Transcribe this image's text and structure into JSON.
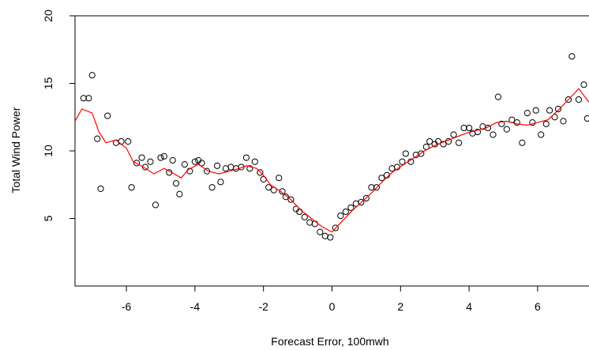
{
  "chart_data": {
    "type": "scatter",
    "title": "",
    "xlabel": "Forecast Error, 100mwh",
    "ylabel": "Total Wind Power",
    "xlim": [
      -7.5,
      7.5
    ],
    "ylim": [
      0,
      20
    ],
    "xticks": [
      -6,
      -4,
      -2,
      0,
      2,
      4,
      6
    ],
    "yticks": [
      5,
      10,
      15,
      20
    ],
    "grid": false,
    "legend": "none",
    "colors": {
      "points": "#000000",
      "smooth_line": "#ff0000"
    },
    "points": [
      [
        -7.25,
        13.9
      ],
      [
        -7.1,
        13.9
      ],
      [
        -7.0,
        15.6
      ],
      [
        -6.85,
        10.9
      ],
      [
        -6.75,
        7.2
      ],
      [
        -6.55,
        12.6
      ],
      [
        -6.3,
        10.6
      ],
      [
        -6.15,
        10.7
      ],
      [
        -5.95,
        10.7
      ],
      [
        -5.85,
        7.3
      ],
      [
        -5.7,
        9.1
      ],
      [
        -5.55,
        9.5
      ],
      [
        -5.45,
        8.8
      ],
      [
        -5.3,
        9.2
      ],
      [
        -5.15,
        6.0
      ],
      [
        -5.0,
        9.5
      ],
      [
        -4.9,
        9.6
      ],
      [
        -4.75,
        8.4
      ],
      [
        -4.65,
        9.3
      ],
      [
        -4.55,
        7.6
      ],
      [
        -4.45,
        6.8
      ],
      [
        -4.3,
        9.0
      ],
      [
        -4.15,
        8.5
      ],
      [
        -4.0,
        9.2
      ],
      [
        -3.9,
        9.3
      ],
      [
        -3.8,
        9.1
      ],
      [
        -3.65,
        8.5
      ],
      [
        -3.5,
        7.3
      ],
      [
        -3.35,
        8.9
      ],
      [
        -3.25,
        7.7
      ],
      [
        -3.1,
        8.7
      ],
      [
        -2.95,
        8.8
      ],
      [
        -2.8,
        8.7
      ],
      [
        -2.65,
        8.8
      ],
      [
        -2.5,
        9.5
      ],
      [
        -2.4,
        8.7
      ],
      [
        -2.25,
        9.2
      ],
      [
        -2.1,
        8.4
      ],
      [
        -2.0,
        7.9
      ],
      [
        -1.85,
        7.3
      ],
      [
        -1.7,
        7.1
      ],
      [
        -1.55,
        8.0
      ],
      [
        -1.45,
        7.0
      ],
      [
        -1.35,
        6.6
      ],
      [
        -1.2,
        6.4
      ],
      [
        -1.05,
        5.7
      ],
      [
        -0.95,
        5.5
      ],
      [
        -0.8,
        5.1
      ],
      [
        -0.65,
        4.7
      ],
      [
        -0.5,
        4.6
      ],
      [
        -0.35,
        4.0
      ],
      [
        -0.2,
        3.7
      ],
      [
        -0.05,
        3.6
      ],
      [
        0.1,
        4.3
      ],
      [
        0.25,
        5.2
      ],
      [
        0.4,
        5.5
      ],
      [
        0.55,
        5.8
      ],
      [
        0.7,
        6.1
      ],
      [
        0.85,
        6.2
      ],
      [
        1.0,
        6.5
      ],
      [
        1.15,
        7.3
      ],
      [
        1.3,
        7.3
      ],
      [
        1.45,
        8.0
      ],
      [
        1.6,
        8.2
      ],
      [
        1.75,
        8.7
      ],
      [
        1.9,
        8.8
      ],
      [
        2.05,
        9.2
      ],
      [
        2.15,
        9.8
      ],
      [
        2.3,
        9.2
      ],
      [
        2.45,
        9.7
      ],
      [
        2.6,
        9.8
      ],
      [
        2.75,
        10.3
      ],
      [
        2.85,
        10.7
      ],
      [
        3.0,
        10.5
      ],
      [
        3.1,
        10.7
      ],
      [
        3.25,
        10.5
      ],
      [
        3.4,
        10.7
      ],
      [
        3.55,
        11.2
      ],
      [
        3.7,
        10.6
      ],
      [
        3.85,
        11.7
      ],
      [
        4.0,
        11.7
      ],
      [
        4.1,
        11.3
      ],
      [
        4.25,
        11.4
      ],
      [
        4.4,
        11.8
      ],
      [
        4.55,
        11.7
      ],
      [
        4.7,
        11.2
      ],
      [
        4.85,
        14.0
      ],
      [
        4.95,
        12.0
      ],
      [
        5.1,
        11.6
      ],
      [
        5.25,
        12.3
      ],
      [
        5.4,
        12.1
      ],
      [
        5.55,
        10.6
      ],
      [
        5.7,
        12.8
      ],
      [
        5.85,
        12.1
      ],
      [
        5.95,
        13.0
      ],
      [
        6.1,
        11.2
      ],
      [
        6.25,
        12.0
      ],
      [
        6.35,
        13.0
      ],
      [
        6.5,
        12.5
      ],
      [
        6.6,
        13.1
      ],
      [
        6.75,
        12.2
      ],
      [
        6.9,
        13.8
      ],
      [
        7.0,
        17.0
      ],
      [
        7.2,
        13.8
      ],
      [
        7.35,
        14.9
      ],
      [
        7.45,
        12.4
      ]
    ],
    "smooth_line": [
      [
        -7.5,
        12.2
      ],
      [
        -7.3,
        13.1
      ],
      [
        -7.0,
        12.8
      ],
      [
        -6.8,
        11.4
      ],
      [
        -6.6,
        10.6
      ],
      [
        -6.3,
        10.8
      ],
      [
        -6.0,
        10.2
      ],
      [
        -5.8,
        9.2
      ],
      [
        -5.5,
        8.8
      ],
      [
        -5.2,
        8.3
      ],
      [
        -4.9,
        8.7
      ],
      [
        -4.6,
        8.3
      ],
      [
        -4.4,
        8.0
      ],
      [
        -4.2,
        8.6
      ],
      [
        -3.9,
        9.0
      ],
      [
        -3.6,
        8.5
      ],
      [
        -3.3,
        8.3
      ],
      [
        -3.0,
        8.5
      ],
      [
        -2.7,
        8.7
      ],
      [
        -2.5,
        8.9
      ],
      [
        -2.2,
        8.7
      ],
      [
        -2.0,
        8.2
      ],
      [
        -1.8,
        7.5
      ],
      [
        -1.5,
        7.0
      ],
      [
        -1.2,
        6.4
      ],
      [
        -0.9,
        5.6
      ],
      [
        -0.6,
        5.0
      ],
      [
        -0.3,
        4.4
      ],
      [
        0.0,
        4.0
      ],
      [
        0.3,
        4.8
      ],
      [
        0.6,
        5.6
      ],
      [
        0.9,
        6.3
      ],
      [
        1.2,
        7.0
      ],
      [
        1.5,
        7.8
      ],
      [
        1.8,
        8.5
      ],
      [
        2.1,
        9.0
      ],
      [
        2.4,
        9.5
      ],
      [
        2.7,
        10.0
      ],
      [
        3.0,
        10.4
      ],
      [
        3.3,
        10.7
      ],
      [
        3.6,
        11.0
      ],
      [
        3.9,
        11.3
      ],
      [
        4.2,
        11.5
      ],
      [
        4.5,
        11.7
      ],
      [
        4.8,
        12.1
      ],
      [
        5.1,
        12.2
      ],
      [
        5.4,
        12.0
      ],
      [
        5.7,
        11.9
      ],
      [
        6.0,
        12.1
      ],
      [
        6.3,
        12.3
      ],
      [
        6.6,
        13.0
      ],
      [
        6.9,
        13.8
      ],
      [
        7.2,
        14.6
      ],
      [
        7.5,
        13.6
      ]
    ]
  }
}
